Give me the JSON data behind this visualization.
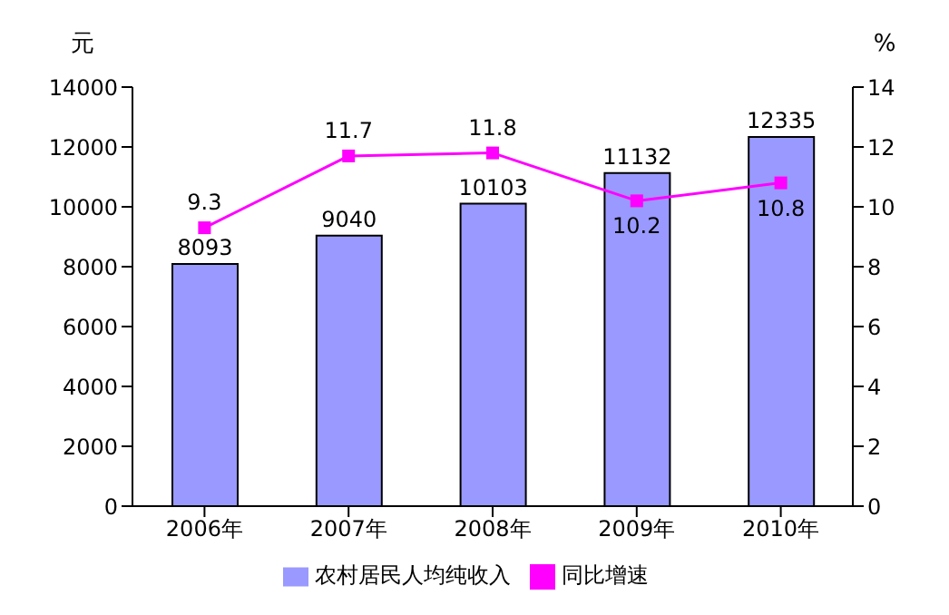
{
  "chart_data": {
    "type": "bar",
    "categories": [
      "2006年",
      "2007年",
      "2008年",
      "2009年",
      "2010年"
    ],
    "series": [
      {
        "name": "农村居民人均纯收入",
        "color": "#9999ff",
        "values": [
          8093,
          9040,
          10103,
          11132,
          12335
        ]
      },
      {
        "name": "同比增速",
        "type": "line",
        "axis": "y2",
        "color": "#ff00ff",
        "values": [
          9.3,
          11.7,
          11.8,
          10.2,
          10.8
        ]
      }
    ],
    "ylabel": "元",
    "y2label": "%",
    "ylim": [
      0,
      14000
    ],
    "yticks": [
      0,
      2000,
      4000,
      6000,
      8000,
      10000,
      12000,
      14000
    ],
    "y2lim": [
      0,
      14
    ],
    "y2ticks": [
      0,
      2,
      4,
      6,
      8,
      10,
      12,
      14
    ],
    "data_labels": true,
    "legend": "bottom",
    "marker": "square",
    "grid": false
  }
}
